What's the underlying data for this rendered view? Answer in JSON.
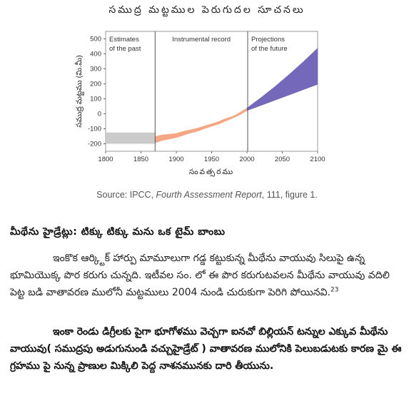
{
  "figure_title": "సముద్ర మట్టముల పెరుగుదల సూచనలు",
  "source": {
    "prefix": "Source: IPCC, ",
    "report": "Fourth Assessment Report",
    "suffix": ", 111, figure 1."
  },
  "section_heading": "మీథేను హైడ్రేట్లు: టిక్కు టిక్కు మను ఒక టైమ్ బాంబు",
  "paragraph1": {
    "text": "ఇంకొక ఆర్క్టిక్ హార్పు మామూలుగా గడ్డ కట్టుకున్న మీథేను వాయువు సిలుపై ఉన్న భూమియొక్క పొర కరుగు చున్నది. ఇటీవల సం. లో ఈ పొర కరుగుటవలన మీథేను వాయువు వదిలి పెట్ట బడి వాతావరణ ములోనీ మట్టములు 2004 నుండి చురుకుగా పెరిగి పోయినవి.",
    "footnote": "23"
  },
  "paragraph2": "ఇంకా రెండు డిగ్రీలకు పైగా భూగోళము వెచ్చగా ఐనచో బిల్లియన్ టన్నుల ఎక్కువ మీథేను వాయువు( సముద్రపు అడుగునుండి వచ్చుహైడ్రేట్ ) వాతావరణ ములోనికి పెలుబడుటకు కారణ మై ఈ గ్రహము పై నున్న ప్రాణుల మిక్కిలి పెద్ద నాశనమునకు దారి తీయును.",
  "chart_data": {
    "type": "area",
    "title": "సముద్ర మట్టముల పెరుగుదల సూచనలు",
    "xlabel": "సంవత్సరము",
    "ylabel": "సముద్ర మట్టము (మి.మీ)",
    "xlim": [
      1800,
      2100
    ],
    "ylim": [
      -250,
      550
    ],
    "x_ticks": [
      1800,
      1850,
      1900,
      1950,
      2000,
      2050,
      2100
    ],
    "y_ticks": [
      -200,
      -100,
      0,
      100,
      200,
      300,
      400,
      500
    ],
    "regions": [
      {
        "label": "Estimates\nof the past",
        "from": 1800,
        "to": 1870
      },
      {
        "label": "Instrumental record",
        "from": 1870,
        "to": 2001
      },
      {
        "label": "Projections\nof the future",
        "from": 2001,
        "to": 2100
      }
    ],
    "series": [
      {
        "style": "past-estimate",
        "color": "#c8c8c8",
        "x": [
          1800,
          1870
        ],
        "upper": [
          -125,
          -125
        ],
        "lower": [
          -200,
          -200
        ]
      },
      {
        "style": "instrumental",
        "color": "#f2a27e",
        "x": [
          1870,
          1880,
          1890,
          1900,
          1910,
          1920,
          1930,
          1940,
          1950,
          1960,
          1970,
          1980,
          1990,
          2000
        ],
        "upper": [
          -150,
          -140,
          -135,
          -130,
          -115,
          -105,
          -95,
          -80,
          -65,
          -50,
          -30,
          -15,
          10,
          40
        ],
        "lower": [
          -195,
          -180,
          -170,
          -160,
          -145,
          -130,
          -118,
          -100,
          -85,
          -70,
          -50,
          -30,
          -8,
          20
        ]
      },
      {
        "style": "projection",
        "color": "#6b60b6",
        "x": [
          2000,
          2020,
          2040,
          2060,
          2080,
          2100
        ],
        "upper": [
          40,
          110,
          185,
          265,
          350,
          440
        ],
        "lower": [
          20,
          55,
          90,
          125,
          160,
          195
        ]
      }
    ]
  }
}
